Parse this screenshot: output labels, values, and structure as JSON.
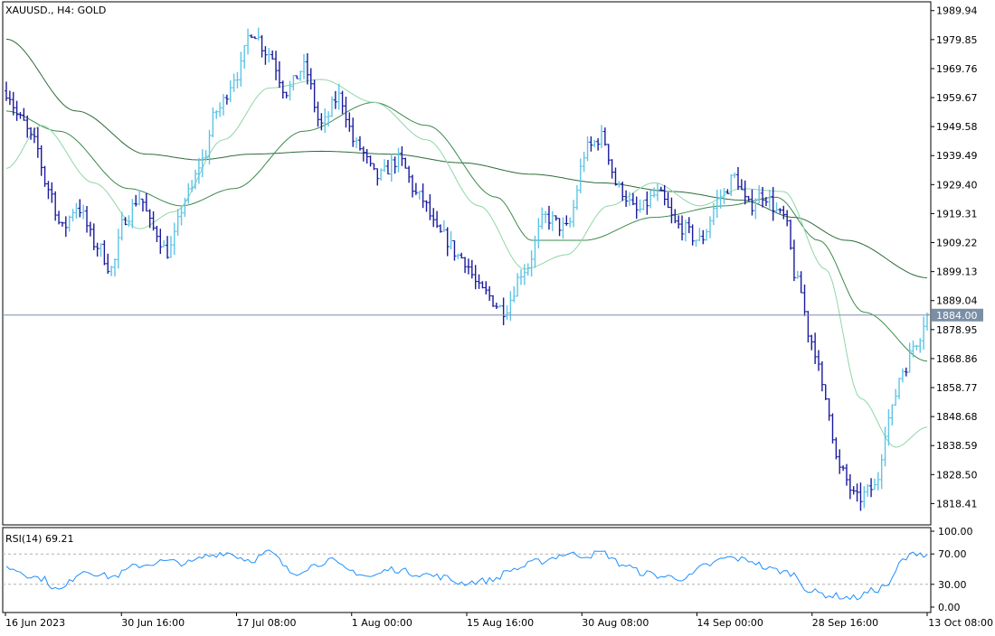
{
  "header": {
    "title": "XAUUSD., H4:  GOLD"
  },
  "chart_data": {
    "type": "line",
    "symbol": "XAUUSD.",
    "timeframe": "H4",
    "description": "GOLD",
    "price_axis": {
      "ticks": [
        1989.94,
        1979.85,
        1969.76,
        1959.67,
        1949.58,
        1939.49,
        1929.4,
        1919.31,
        1909.22,
        1899.13,
        1889.04,
        1878.95,
        1868.86,
        1858.77,
        1848.68,
        1838.59,
        1828.5,
        1818.41
      ],
      "tick_labels": [
        "1989.94",
        "1979.85",
        "1969.76",
        "1959.67",
        "1949.58",
        "1939.49",
        "1929.40",
        "1919.31",
        "1909.22",
        "1899.13",
        "1889.04",
        "1878.95",
        "1868.86",
        "1858.77",
        "1848.68",
        "1838.59",
        "1828.50",
        "1818.41"
      ],
      "range": [
        1811.0,
        1993.0
      ]
    },
    "current_price": {
      "value": 1884.0,
      "label": "1884.00"
    },
    "time_axis": {
      "labels": [
        "16 Jun 2023",
        "30 Jun 16:00",
        "17 Jul 08:00",
        "1 Aug 00:00",
        "15 Aug 16:00",
        "30 Aug 08:00",
        "14 Sep 00:00",
        "28 Sep 16:00",
        "13 Oct 08:00"
      ]
    },
    "price_series_keypoints": [
      [
        0,
        1962
      ],
      [
        4,
        1952
      ],
      [
        8,
        1944
      ],
      [
        12,
        1928
      ],
      [
        16,
        1914
      ],
      [
        20,
        1922
      ],
      [
        26,
        1908
      ],
      [
        30,
        1900
      ],
      [
        34,
        1918
      ],
      [
        38,
        1925
      ],
      [
        42,
        1914
      ],
      [
        46,
        1906
      ],
      [
        52,
        1926
      ],
      [
        56,
        1938
      ],
      [
        60,
        1955
      ],
      [
        66,
        1968
      ],
      [
        70,
        1983
      ],
      [
        75,
        1975
      ],
      [
        80,
        1962
      ],
      [
        85,
        1970
      ],
      [
        90,
        1950
      ],
      [
        95,
        1960
      ],
      [
        100,
        1943
      ],
      [
        106,
        1932
      ],
      [
        112,
        1938
      ],
      [
        118,
        1925
      ],
      [
        124,
        1912
      ],
      [
        130,
        1904
      ],
      [
        136,
        1892
      ],
      [
        142,
        1886
      ],
      [
        148,
        1900
      ],
      [
        154,
        1918
      ],
      [
        160,
        1914
      ],
      [
        166,
        1942
      ],
      [
        170,
        1946
      ],
      [
        175,
        1928
      ],
      [
        180,
        1920
      ],
      [
        186,
        1926
      ],
      [
        192,
        1915
      ],
      [
        198,
        1910
      ],
      [
        204,
        1925
      ],
      [
        208,
        1932
      ],
      [
        212,
        1922
      ],
      [
        216,
        1926
      ],
      [
        222,
        1918
      ],
      [
        226,
        1895
      ],
      [
        230,
        1875
      ],
      [
        234,
        1855
      ],
      [
        238,
        1830
      ],
      [
        243,
        1820
      ],
      [
        248,
        1824
      ],
      [
        252,
        1848
      ],
      [
        256,
        1865
      ],
      [
        260,
        1875
      ],
      [
        263,
        1884
      ]
    ],
    "moving_averages": [
      {
        "color": "#2e6b3a",
        "keypoints": [
          [
            0,
            1980
          ],
          [
            20,
            1955
          ],
          [
            40,
            1940
          ],
          [
            55,
            1938
          ],
          [
            70,
            1940
          ],
          [
            90,
            1941
          ],
          [
            110,
            1940
          ],
          [
            130,
            1937
          ],
          [
            150,
            1933
          ],
          [
            170,
            1930
          ],
          [
            190,
            1927
          ],
          [
            210,
            1924
          ],
          [
            225,
            1918
          ],
          [
            240,
            1910
          ],
          [
            263,
            1897
          ]
        ]
      },
      {
        "color": "#3d8a4d",
        "keypoints": [
          [
            0,
            1955
          ],
          [
            15,
            1948
          ],
          [
            35,
            1928
          ],
          [
            50,
            1922
          ],
          [
            65,
            1928
          ],
          [
            85,
            1948
          ],
          [
            105,
            1958
          ],
          [
            120,
            1950
          ],
          [
            140,
            1925
          ],
          [
            150,
            1910
          ],
          [
            165,
            1910
          ],
          [
            185,
            1918
          ],
          [
            205,
            1922
          ],
          [
            220,
            1925
          ],
          [
            232,
            1910
          ],
          [
            245,
            1885
          ],
          [
            263,
            1868
          ]
        ]
      },
      {
        "color": "#8fd6a8",
        "keypoints": [
          [
            0,
            1935
          ],
          [
            10,
            1950
          ],
          [
            25,
            1930
          ],
          [
            38,
            1914
          ],
          [
            48,
            1920
          ],
          [
            62,
            1945
          ],
          [
            75,
            1963
          ],
          [
            90,
            1966
          ],
          [
            105,
            1958
          ],
          [
            120,
            1945
          ],
          [
            135,
            1922
          ],
          [
            148,
            1900
          ],
          [
            160,
            1905
          ],
          [
            172,
            1922
          ],
          [
            185,
            1930
          ],
          [
            198,
            1922
          ],
          [
            210,
            1928
          ],
          [
            222,
            1927
          ],
          [
            234,
            1900
          ],
          [
            244,
            1855
          ],
          [
            254,
            1838
          ],
          [
            263,
            1845
          ]
        ]
      }
    ],
    "rsi": {
      "label": "RSI(14) 69.21",
      "period": 14,
      "value": 69.21,
      "levels": [
        30,
        70
      ],
      "ticks": [
        100.0,
        70.0,
        30.0,
        0.0
      ],
      "tick_labels": [
        "100.00",
        "70.00",
        "30.00",
        "0.00"
      ],
      "color": "#1e90ff",
      "keypoints": [
        [
          0,
          52
        ],
        [
          10,
          38
        ],
        [
          15,
          22
        ],
        [
          22,
          48
        ],
        [
          30,
          40
        ],
        [
          38,
          55
        ],
        [
          45,
          60
        ],
        [
          52,
          58
        ],
        [
          58,
          68
        ],
        [
          62,
          72
        ],
        [
          70,
          62
        ],
        [
          75,
          72
        ],
        [
          82,
          45
        ],
        [
          88,
          55
        ],
        [
          92,
          62
        ],
        [
          98,
          48
        ],
        [
          104,
          40
        ],
        [
          110,
          50
        ],
        [
          118,
          44
        ],
        [
          124,
          40
        ],
        [
          130,
          32
        ],
        [
          138,
          35
        ],
        [
          145,
          50
        ],
        [
          152,
          60
        ],
        [
          160,
          70
        ],
        [
          166,
          68
        ],
        [
          170,
          72
        ],
        [
          176,
          56
        ],
        [
          182,
          45
        ],
        [
          188,
          40
        ],
        [
          194,
          38
        ],
        [
          200,
          55
        ],
        [
          206,
          65
        ],
        [
          212,
          62
        ],
        [
          218,
          50
        ],
        [
          224,
          45
        ],
        [
          230,
          20
        ],
        [
          236,
          15
        ],
        [
          242,
          12
        ],
        [
          248,
          22
        ],
        [
          252,
          30
        ],
        [
          256,
          62
        ],
        [
          260,
          72
        ],
        [
          263,
          69
        ]
      ]
    }
  }
}
